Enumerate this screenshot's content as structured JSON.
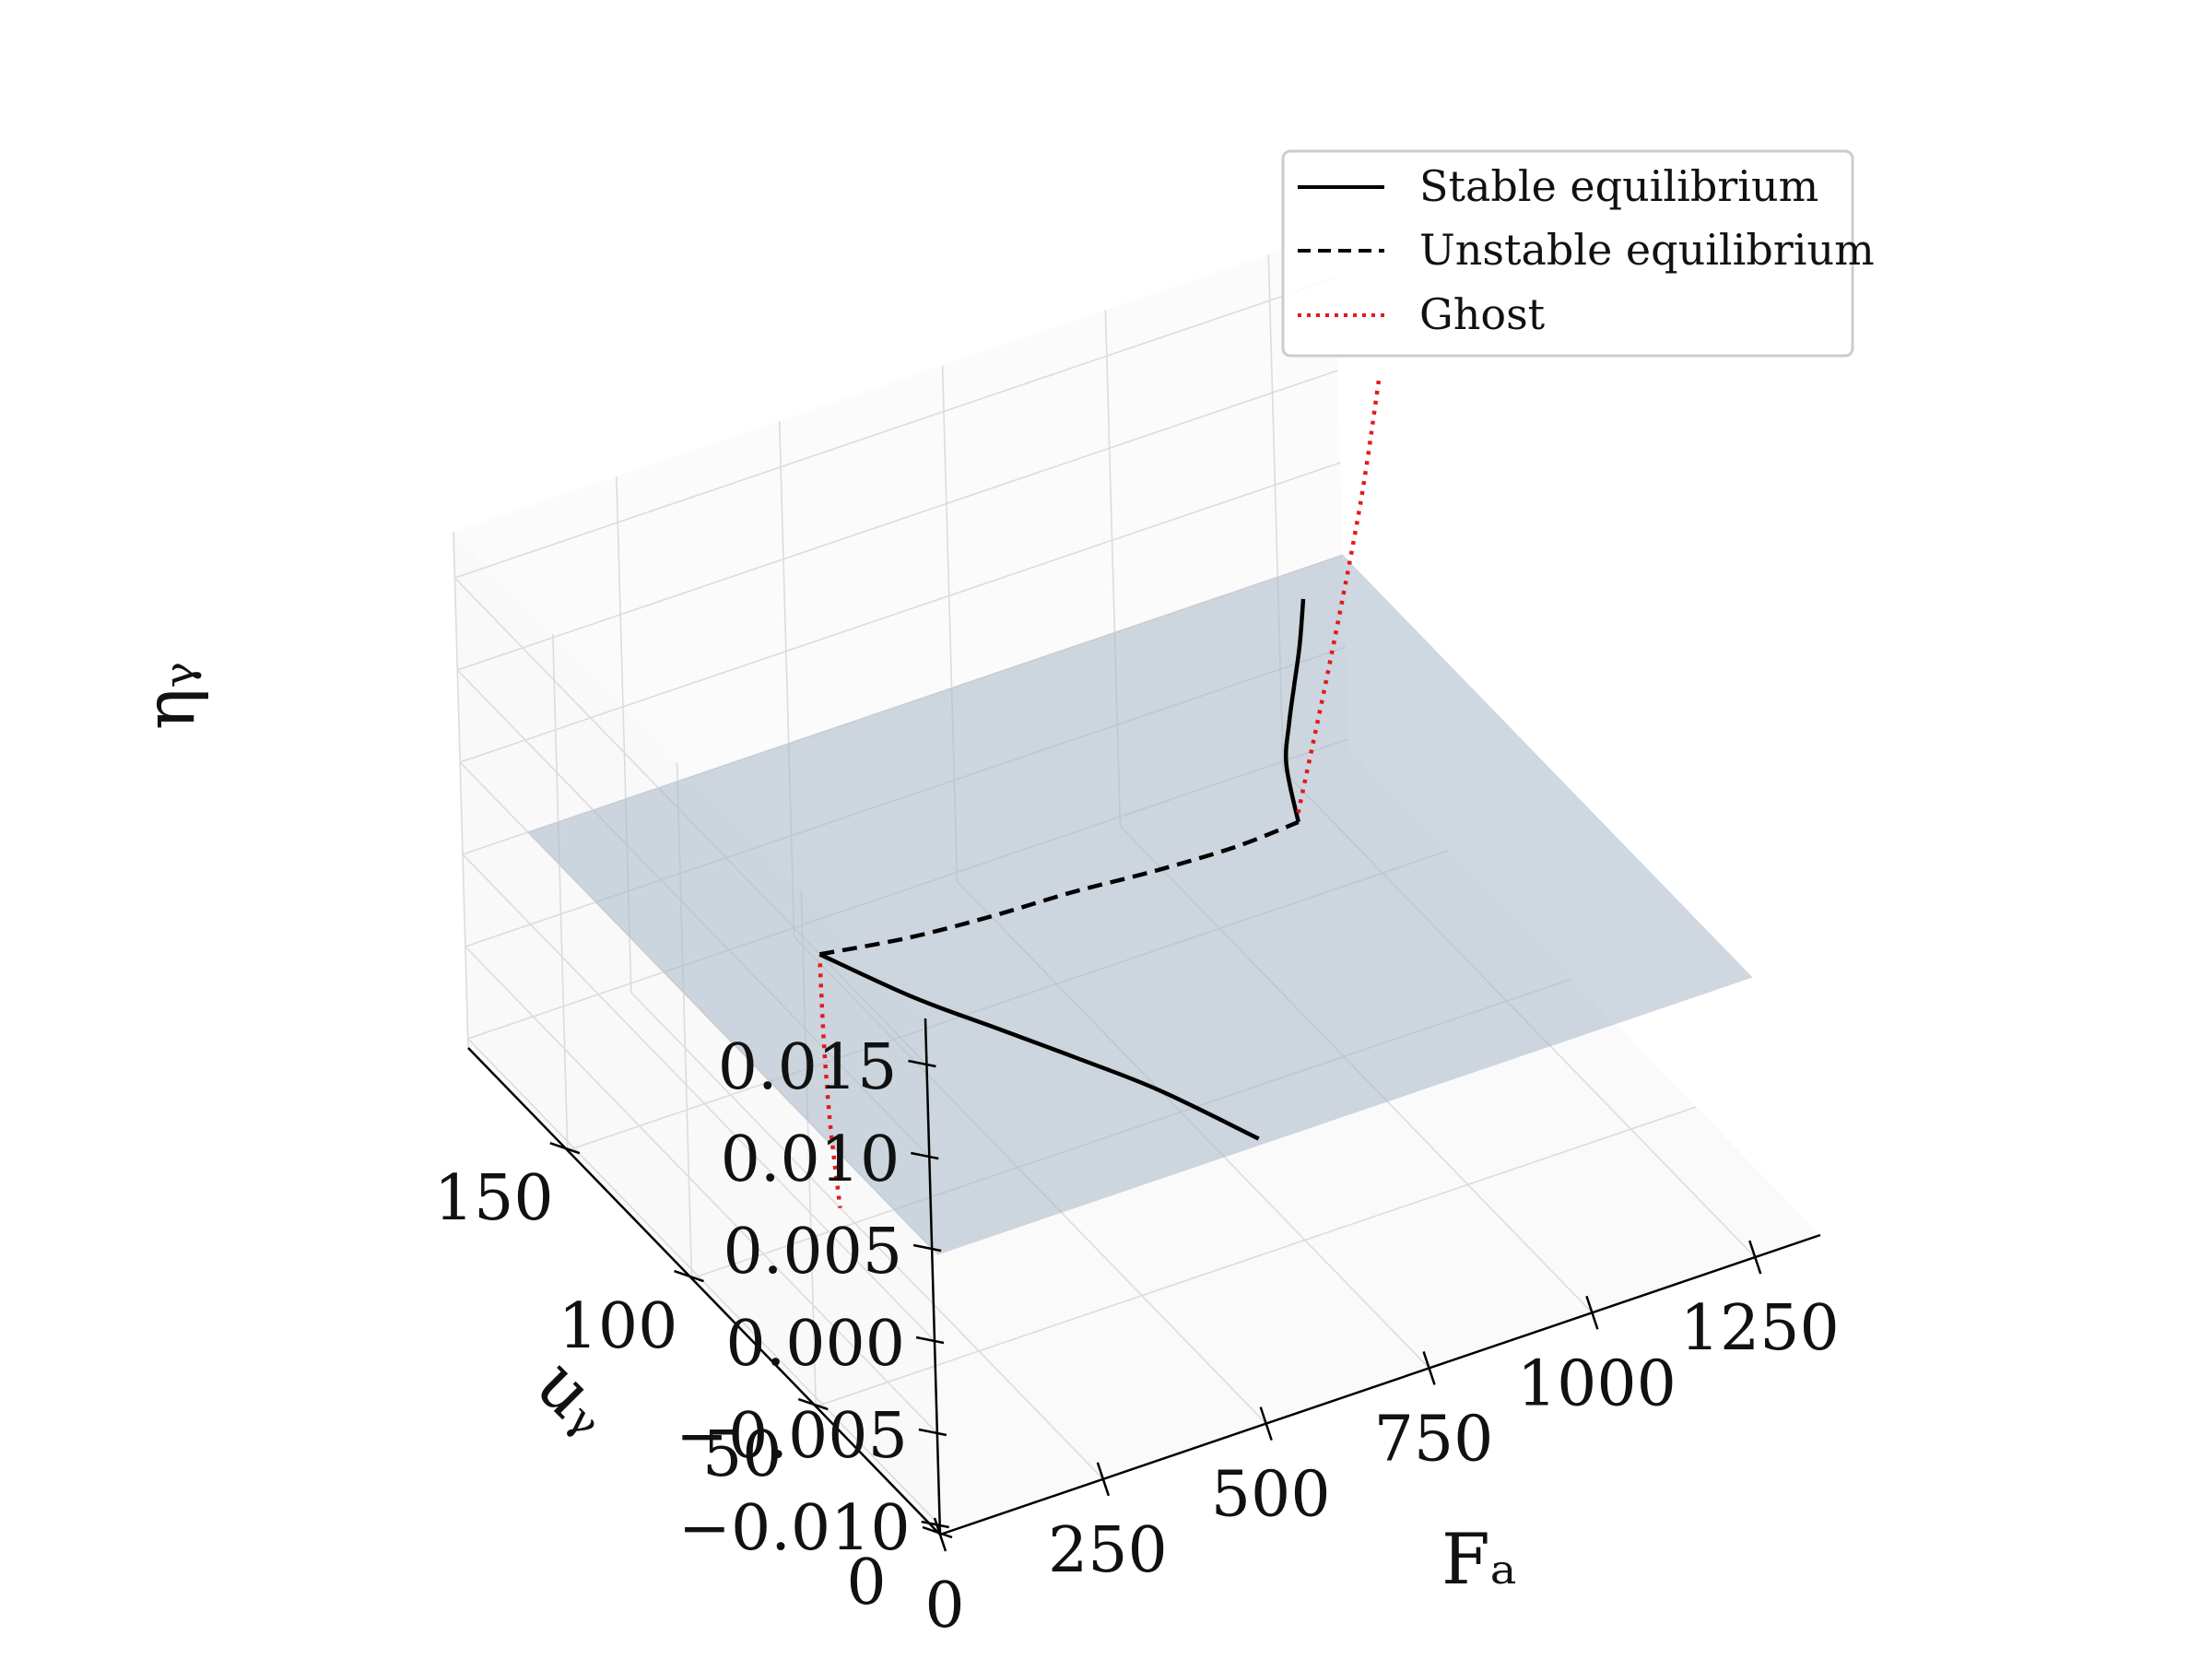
{
  "chart_data": {
    "type": "line",
    "projection": "3d",
    "title": "",
    "xlabel": "Fₐ",
    "ylabel": "uᵧ",
    "zlabel": "ηᵧ",
    "xlim": [
      0,
      1350
    ],
    "ylim": [
      0,
      190
    ],
    "zlim": [
      -0.0105,
      0.0175
    ],
    "x_ticks": [
      0,
      250,
      500,
      750,
      1000,
      1250
    ],
    "x_tick_labels": [
      "0",
      "250",
      "500",
      "750",
      "1000",
      "1250"
    ],
    "y_ticks": [
      0,
      50,
      100,
      150
    ],
    "y_tick_labels": [
      "0",
      "50",
      "100",
      "150"
    ],
    "z_ticks": [
      -0.01,
      -0.005,
      0.0,
      0.005,
      0.01,
      0.015
    ],
    "z_tick_labels": [
      "−0.010",
      "−0.005",
      "0.000",
      "0.005",
      "0.010",
      "0.015"
    ],
    "grid": true,
    "legend_position": "top-right",
    "colors": {
      "stable": "#000000",
      "unstable": "#000000",
      "ghost": "#e31a1c",
      "plane": "#a7b6c6",
      "grid": "#dcdcdc"
    },
    "plane": {
      "z": 0.0,
      "x_range": [
        100,
        1350
      ],
      "y_range": [
        25,
        190
      ]
    },
    "series": [
      {
        "name": "Stable equilibrium",
        "style": "solid",
        "segments": [
          {
            "x": [
              600,
              540,
              480,
              420,
              360,
              300
            ],
            "y": [
              27,
              51,
              69,
              86,
              103,
              125
            ],
            "z": [
              0,
              0,
              0,
              0,
              0,
              0
            ]
          },
          {
            "x": [
              1000,
              1050,
              1100,
              1150,
              1200,
              1255
            ],
            "y": [
              116,
              134,
              146,
              157,
              168,
              181
            ],
            "z": [
              0,
              0,
              0,
              0,
              0,
              0
            ]
          }
        ]
      },
      {
        "name": "Unstable equilibrium",
        "style": "dashed",
        "segments": [
          {
            "x": [
              300,
              420,
              540,
              660,
              780,
              900,
              1000
            ],
            "y": [
              125,
              121,
              119,
              118,
              116,
              115,
              116
            ],
            "z": [
              0,
              0,
              0,
              0,
              0,
              0,
              0
            ]
          }
        ]
      },
      {
        "name": "Ghost",
        "style": "dotted",
        "segments": [
          {
            "x": [
              300,
              255,
              210,
              170
            ],
            "y": [
              125,
              112,
              98,
              84
            ],
            "z": [
              -0.0005,
              -0.0025,
              -0.0045,
              -0.0065
            ]
          },
          {
            "x": [
              1000,
              1100,
              1200,
              1270
            ],
            "y": [
              116,
              128,
              141,
              151
            ],
            "z": [
              0.0005,
              0.006,
              0.0115,
              0.016
            ]
          }
        ]
      }
    ],
    "legend": [
      {
        "label": "Stable equilibrium",
        "style": "solid"
      },
      {
        "label": "Unstable equilibrium",
        "style": "dashed"
      },
      {
        "label": "Ghost",
        "style": "dotted"
      }
    ]
  }
}
